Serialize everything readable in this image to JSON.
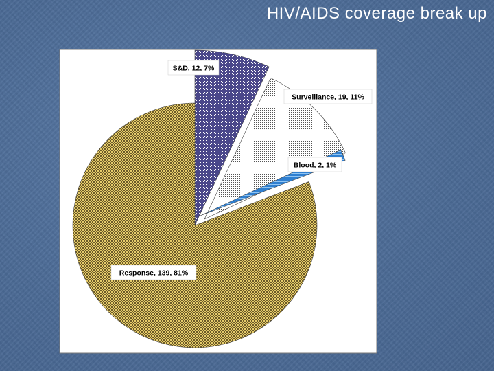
{
  "slide": {
    "title": "HIV/AIDS coverage break up"
  },
  "chart_data": {
    "type": "pie",
    "title": "",
    "legend": "none",
    "slices": [
      {
        "name": "S&D",
        "value": 12,
        "percent": 7,
        "label": "S&D, 12, 7%",
        "fill": "#3c3a78",
        "pattern": "dots-dark"
      },
      {
        "name": "Surveillance",
        "value": 19,
        "percent": 11,
        "label": "Surveillance, 19, 11%",
        "fill": "#ffffff",
        "pattern": "dots-light"
      },
      {
        "name": "Blood",
        "value": 2,
        "percent": 1,
        "label": "Blood, 2, 1%",
        "fill": "#2f7fd0",
        "pattern": "stripes-blue"
      },
      {
        "name": "Response",
        "value": 139,
        "percent": 81,
        "label": "Response, 139, 81%",
        "fill": "#d8bd5c",
        "pattern": "checker-gold"
      }
    ],
    "colors": {
      "plot_area": "#ffffff",
      "plot_border": "#777777",
      "background": "#4f6f9a"
    }
  }
}
